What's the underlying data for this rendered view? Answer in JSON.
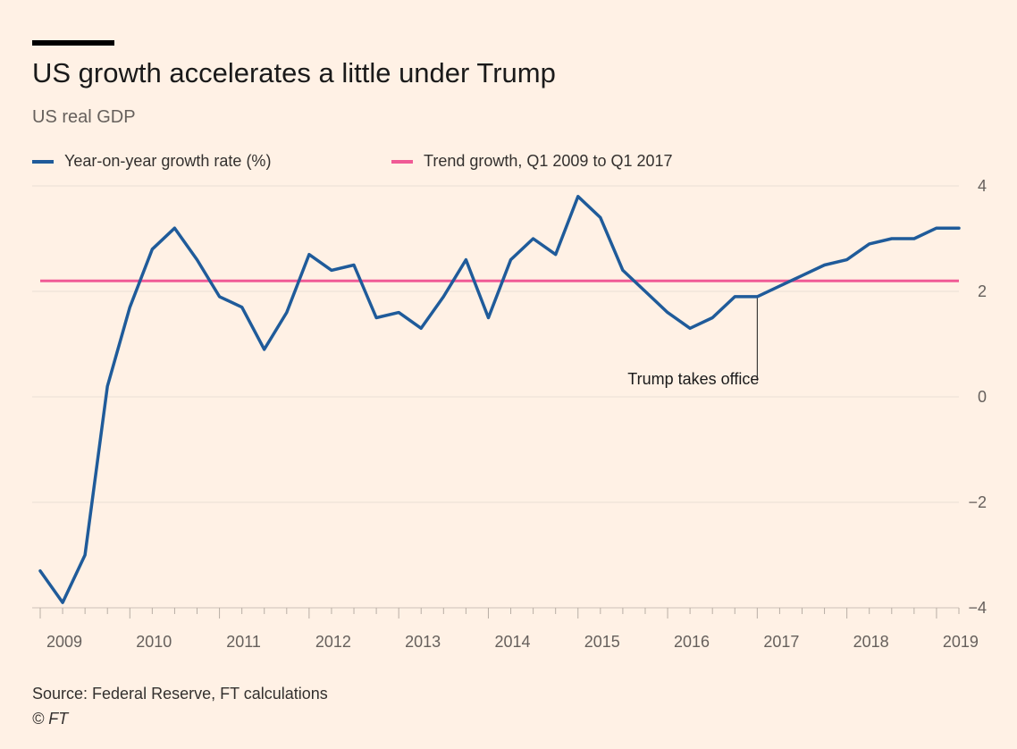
{
  "chart_data": {
    "type": "line",
    "title": "US growth accelerates a little under Trump",
    "subtitle": "US real GDP",
    "xlabel": "",
    "ylabel": "",
    "ylim": [
      -4,
      4
    ],
    "xlim": [
      2009.0,
      2019.25
    ],
    "grid": true,
    "legend_placement": "top-left",
    "yticks": [
      -4,
      -2,
      0,
      2,
      4
    ],
    "xticks": [
      2009,
      2010,
      2011,
      2012,
      2013,
      2014,
      2015,
      2016,
      2017,
      2018,
      2019
    ],
    "series": [
      {
        "name": "Year-on-year growth rate (%)",
        "color": "#1F5B9A",
        "x": [
          2009.0,
          2009.25,
          2009.5,
          2009.75,
          2010.0,
          2010.25,
          2010.5,
          2010.75,
          2011.0,
          2011.25,
          2011.5,
          2011.75,
          2012.0,
          2012.25,
          2012.5,
          2012.75,
          2013.0,
          2013.25,
          2013.5,
          2013.75,
          2014.0,
          2014.25,
          2014.5,
          2014.75,
          2015.0,
          2015.25,
          2015.5,
          2015.75,
          2016.0,
          2016.25,
          2016.5,
          2016.75,
          2017.0,
          2017.25,
          2017.5,
          2017.75,
          2018.0,
          2018.25,
          2018.5,
          2018.75,
          2019.0,
          2019.25
        ],
        "y": [
          -3.3,
          -3.9,
          -3.0,
          0.2,
          1.7,
          2.8,
          3.2,
          2.6,
          1.9,
          1.7,
          0.9,
          1.6,
          2.7,
          2.4,
          2.5,
          1.5,
          1.6,
          1.3,
          1.9,
          2.6,
          1.5,
          2.6,
          3.0,
          2.7,
          3.8,
          3.4,
          2.4,
          2.0,
          1.6,
          1.3,
          1.5,
          1.9,
          1.9,
          2.1,
          2.3,
          2.5,
          2.6,
          2.9,
          3.0,
          3.0,
          3.2,
          3.2
        ]
      },
      {
        "name": "Trend growth, Q1 2009 to Q1 2017",
        "color": "#F05A95",
        "x": [
          2009.0,
          2019.25
        ],
        "y": [
          2.2,
          2.2
        ]
      }
    ],
    "annotations": [
      {
        "text": "Trump takes office",
        "x": 2017.0,
        "y": 1.9
      }
    ]
  },
  "footer": {
    "source": "Source: Federal Reserve, FT calculations",
    "copyright": "© FT"
  }
}
